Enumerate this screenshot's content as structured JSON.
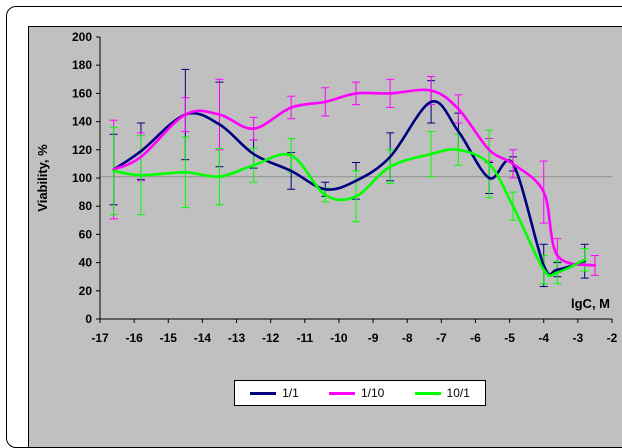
{
  "chart_data": {
    "type": "line",
    "title": "",
    "xlabel": "lgC, M",
    "ylabel": "Viability, %",
    "xlim": [
      -17,
      -2
    ],
    "ylim": [
      0,
      200
    ],
    "x_ticks": [
      -17,
      -16,
      -15,
      -14,
      -13,
      -12,
      -11,
      -10,
      -9,
      -8,
      -7,
      -6,
      -5,
      -4,
      -3,
      -2
    ],
    "y_ticks": [
      0,
      20,
      40,
      60,
      80,
      100,
      120,
      140,
      160,
      180,
      200
    ],
    "reference_line": 101,
    "grid": false,
    "legend_position": "bottom",
    "series": [
      {
        "name": "1/1",
        "color": "#000080",
        "x": [
          -16.6,
          -15.8,
          -14.5,
          -13.5,
          -12.5,
          -11.4,
          -10.4,
          -9.5,
          -8.5,
          -7.3,
          -6.5,
          -5.6,
          -4.9,
          -4.0,
          -3.6,
          -2.8
        ],
        "y": [
          106,
          119,
          145,
          138,
          117,
          105,
          92,
          98,
          115,
          154,
          133,
          100,
          110,
          38,
          35,
          41
        ],
        "err": [
          25,
          20,
          32,
          30,
          10,
          13,
          5,
          13,
          17,
          15,
          13,
          11,
          5,
          15,
          5,
          12
        ]
      },
      {
        "name": "1/10",
        "color": "#ff00ff",
        "x": [
          -16.6,
          -15.8,
          -14.5,
          -13.5,
          -12.5,
          -11.4,
          -10.4,
          -9.5,
          -8.5,
          -7.3,
          -6.5,
          -5.6,
          -4.9,
          -4.0,
          -3.6,
          -2.5
        ],
        "y": [
          106,
          115,
          145,
          145,
          135,
          150,
          154,
          160,
          160,
          162,
          149,
          120,
          110,
          90,
          45,
          38
        ],
        "err": [
          35,
          17,
          12,
          25,
          8,
          8,
          10,
          8,
          10,
          10,
          10,
          8,
          10,
          22,
          12,
          7
        ]
      },
      {
        "name": "10/1",
        "color": "#00ff00",
        "x": [
          -16.6,
          -15.8,
          -14.5,
          -13.5,
          -12.5,
          -11.4,
          -10.4,
          -9.5,
          -8.5,
          -7.3,
          -6.5,
          -5.6,
          -4.9,
          -4.0,
          -3.6,
          -2.8
        ],
        "y": [
          105,
          102,
          104,
          101,
          109,
          116,
          88,
          87,
          108,
          117,
          120,
          110,
          80,
          35,
          33,
          42
        ],
        "err": [
          31,
          28,
          25,
          20,
          12,
          12,
          5,
          18,
          12,
          16,
          11,
          24,
          10,
          10,
          8,
          8
        ]
      }
    ]
  }
}
